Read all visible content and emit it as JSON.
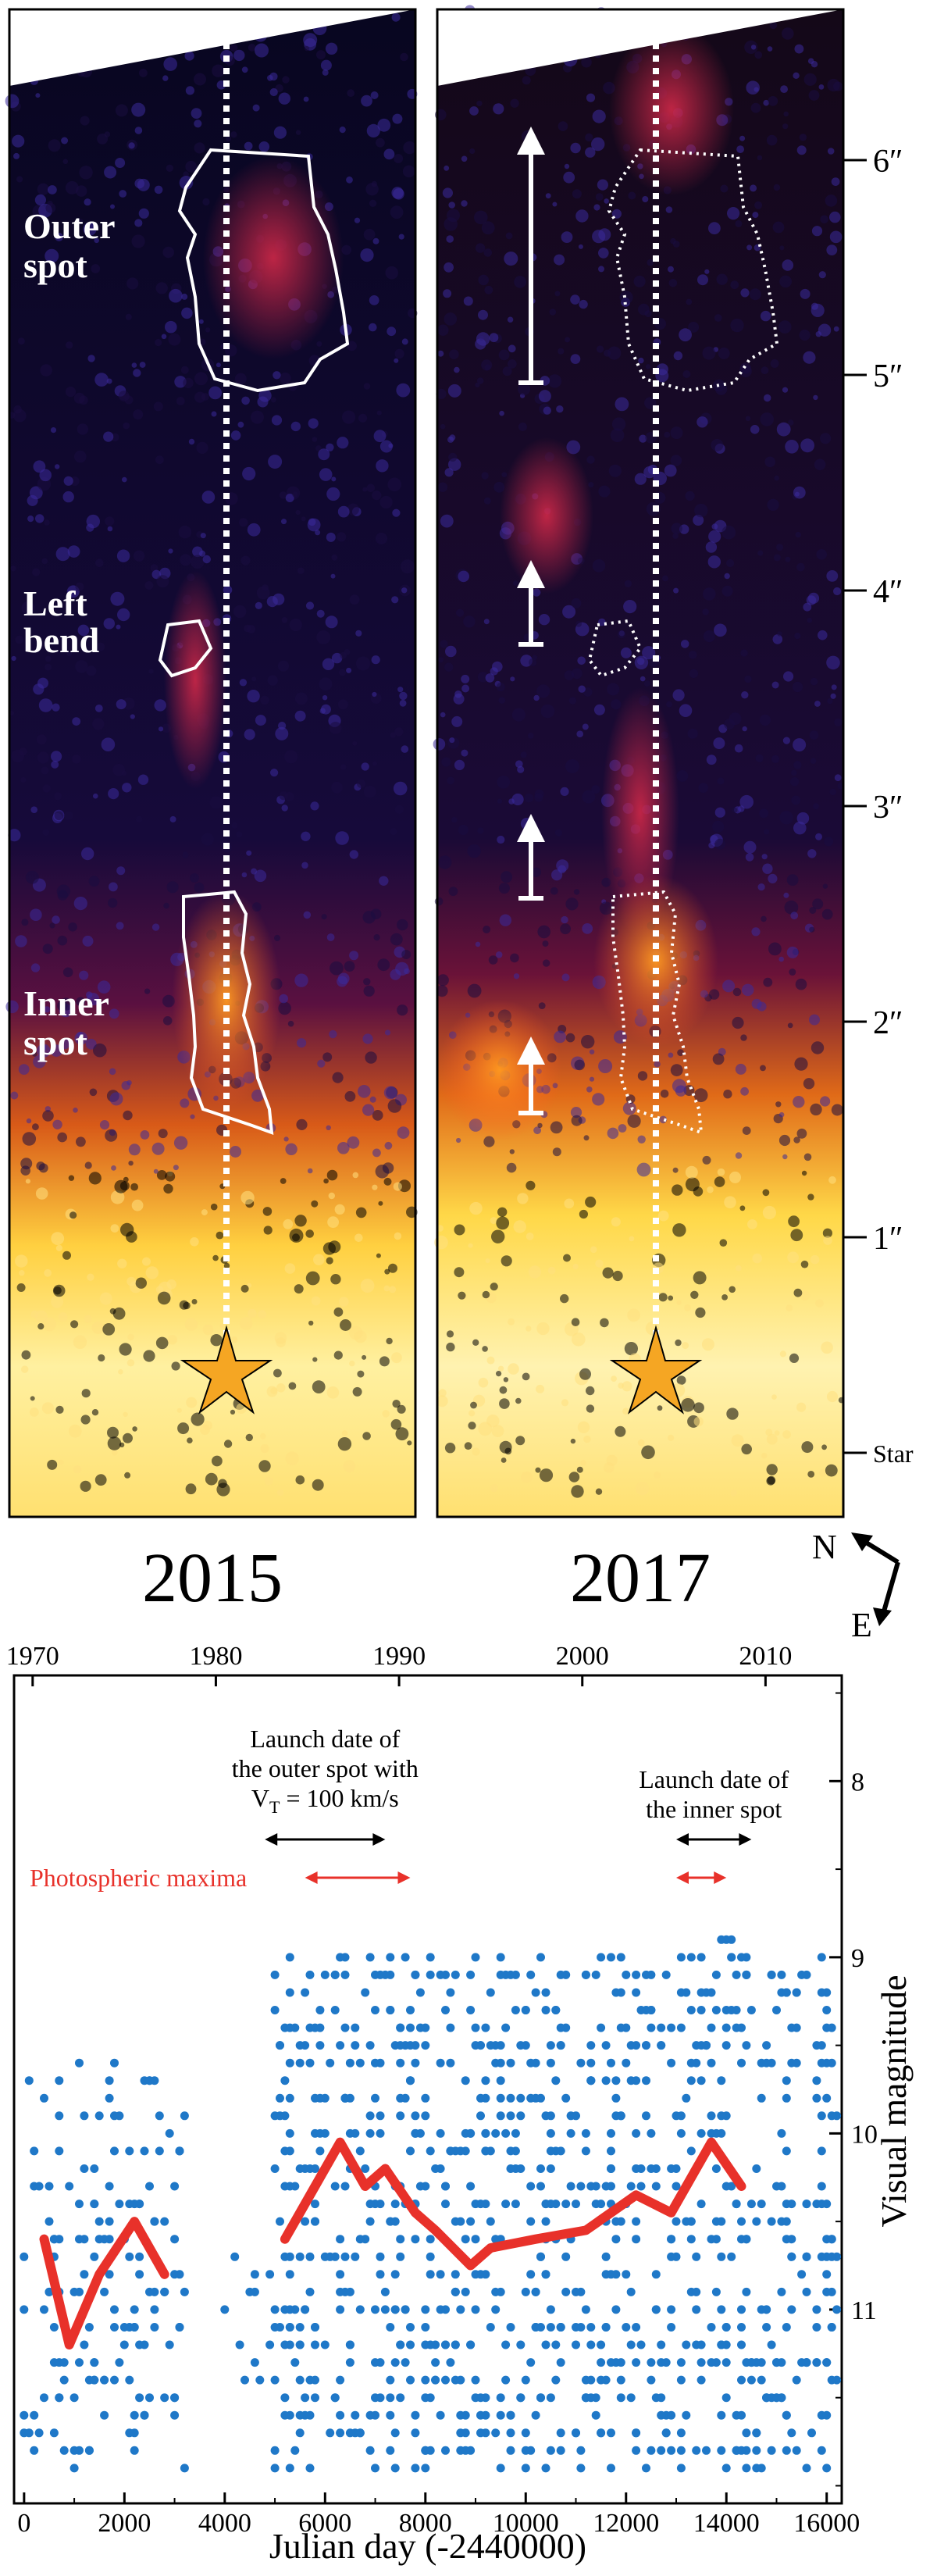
{
  "images": {
    "panels": [
      {
        "year": "2015",
        "labels": {
          "outer": [
            "Outer",
            "spot"
          ],
          "left": [
            "Left",
            "bend"
          ],
          "inner": [
            "Inner",
            "spot"
          ]
        }
      },
      {
        "year": "2017"
      }
    ],
    "scale_ticks": [
      "6″",
      "5″",
      "4″",
      "3″",
      "2″",
      "1″",
      "Star"
    ],
    "compass": {
      "north": "N",
      "east": "E"
    }
  },
  "colors": {
    "data_points": "#1f78c8",
    "trend_line": "#e8312a",
    "arrow_black": "#000000",
    "arrow_red": "#e8312a"
  },
  "chart_data": {
    "type": "scatter",
    "x_axis_bottom": {
      "label": "Julian day (-2440000)",
      "ticks": [
        0,
        2000,
        4000,
        6000,
        8000,
        10000,
        12000,
        14000,
        16000
      ],
      "range": [
        -200,
        16300
      ]
    },
    "x_axis_top": {
      "ticks": [
        1970,
        1980,
        1990,
        2000,
        2010
      ]
    },
    "y_axis_right": {
      "label": "Visual magnitude",
      "ticks": [
        8,
        9,
        10,
        11
      ],
      "range": [
        12.1,
        7.4
      ],
      "inverted": true
    },
    "annotations": {
      "outer_launch": {
        "lines": [
          "Launch date of",
          "the outer spot with",
          "V",
          "T",
          " = 100 km/s"
        ],
        "jd_range": [
          4800,
          7200
        ]
      },
      "inner_launch": {
        "lines": [
          "Launch date of",
          "the inner spot"
        ],
        "jd_range": [
          13000,
          14500
        ]
      },
      "photospheric_maxima": {
        "label": "Photospheric maxima",
        "ranges": [
          [
            5600,
            7700
          ],
          [
            13000,
            14000
          ]
        ]
      }
    },
    "series": [
      {
        "name": "",
        "kind": "line",
        "x": [
          400,
          900,
          1500,
          2200,
          2800
        ],
        "y": [
          10.6,
          11.2,
          10.8,
          10.5,
          10.8
        ]
      },
      {
        "name": "",
        "kind": "line",
        "x": [
          5200,
          5800,
          6300,
          6800,
          7200,
          7800,
          8200,
          8900,
          9300,
          10200,
          11200,
          12200,
          12900,
          13700,
          14300
        ],
        "y": [
          10.6,
          10.3,
          10.05,
          10.3,
          10.2,
          10.45,
          10.55,
          10.75,
          10.65,
          10.6,
          10.55,
          10.35,
          10.45,
          10.05,
          10.3
        ]
      },
      {
        "name": "",
        "kind": "scatter",
        "clusters": [
          {
            "x_range": [
              0,
              3200
            ],
            "y_range": [
              9.6,
              11.9
            ],
            "count": 150
          },
          {
            "x_range": [
              4000,
              5000
            ],
            "y_range": [
              10.6,
              11.6
            ],
            "count": 12
          },
          {
            "x_range": [
              5000,
              16200
            ],
            "y_range": [
              9.0,
              11.9
            ],
            "count": 900
          },
          {
            "x_range": [
              13500,
              14500
            ],
            "y_range": [
              8.8,
              9.6
            ],
            "count": 20
          }
        ]
      }
    ]
  }
}
